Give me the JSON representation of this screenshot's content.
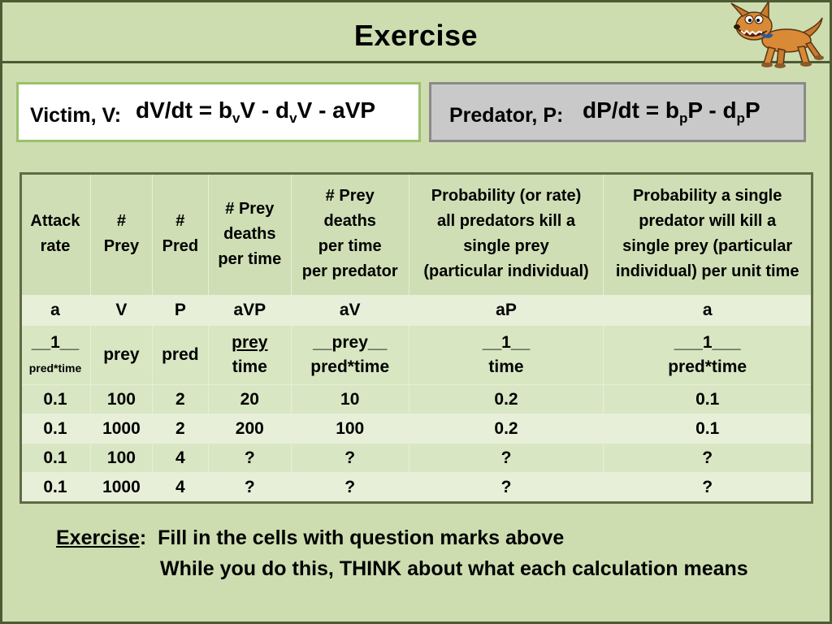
{
  "slide": {
    "title": "Exercise"
  },
  "equations": {
    "victim": {
      "label": "Victim, V:",
      "formula_parts": [
        "dV/dt = b",
        "v",
        "V - d",
        "v",
        "V - aVP"
      ]
    },
    "predator": {
      "label": "Predator, P:",
      "formula_parts": [
        "dP/dt = b",
        "p",
        "P - d",
        "p",
        "P"
      ]
    }
  },
  "table": {
    "headers": [
      [
        "Attack",
        "rate"
      ],
      [
        "#",
        "Prey"
      ],
      [
        "#",
        "Pred"
      ],
      [
        "# Prey",
        "deaths",
        "per time"
      ],
      [
        "# Prey",
        "deaths",
        "per time",
        "per predator"
      ],
      [
        "Probability (or rate)",
        "all predators kill a",
        "single prey",
        "(particular individual)"
      ],
      [
        "Probability a single",
        "predator will kill a",
        "single prey (particular",
        "individual) per unit time"
      ]
    ],
    "symbols": [
      "a",
      "V",
      "P",
      "aVP",
      "aV",
      "aP",
      "a"
    ],
    "units": [
      [
        "__1__",
        "pred*time"
      ],
      [
        "prey"
      ],
      [
        "pred"
      ],
      [
        "prey",
        "time"
      ],
      [
        "__prey__",
        "pred*time"
      ],
      [
        "__1__",
        "time"
      ],
      [
        "___1___",
        "pred*time"
      ]
    ],
    "rows": [
      [
        "0.1",
        "100",
        "2",
        "20",
        "10",
        "0.2",
        "0.1"
      ],
      [
        "0.1",
        "1000",
        "2",
        "200",
        "100",
        "0.2",
        "0.1"
      ],
      [
        "0.1",
        "100",
        "4",
        "?",
        "?",
        "?",
        "?"
      ],
      [
        "0.1",
        "1000",
        "4",
        "?",
        "?",
        "?",
        "?"
      ]
    ]
  },
  "instructions": {
    "heading": "Exercise",
    "separator": ":",
    "line1": "Fill in the cells with question marks above",
    "line2": "While you do this, THINK about what each calculation means"
  },
  "icons": {
    "mascot": "cartoon-dog-icon"
  }
}
